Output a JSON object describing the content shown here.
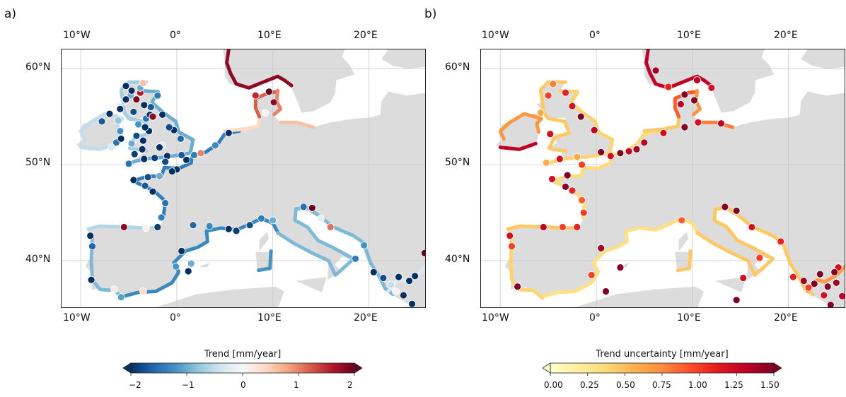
{
  "panels": [
    {
      "letter": "a)",
      "lon_ticks": [
        "10°W",
        "0°",
        "10°E",
        "20°E"
      ],
      "lat_ticks": [
        "60°N",
        "50°N",
        "40°N"
      ],
      "colorbar": {
        "title": "Trend [mm/year]",
        "ticks": [
          "−2",
          "−1",
          "0",
          "1",
          "2"
        ],
        "range": [
          -2,
          2
        ],
        "colormap": "RdBu_r",
        "colors": [
          "#053061",
          "#2166ac",
          "#4393c3",
          "#92c5de",
          "#d1e5f0",
          "#f7f7f7",
          "#fddbc7",
          "#f4a582",
          "#d6604d",
          "#b2182b",
          "#67001f"
        ]
      }
    },
    {
      "letter": "b)",
      "lon_ticks": [
        "10°W",
        "0°",
        "10°E",
        "20°E"
      ],
      "lat_ticks": [
        "60°N",
        "50°N",
        "40°N"
      ],
      "colorbar": {
        "title": "Trend uncertainty [mm/year]",
        "ticks": [
          "0.00",
          "0.25",
          "0.50",
          "0.75",
          "1.00",
          "1.25",
          "1.50"
        ],
        "range": [
          0,
          1.5
        ],
        "colormap": "YlOrRd",
        "colors": [
          "#ffffcc",
          "#ffeda0",
          "#fed976",
          "#feb24c",
          "#fd8d3c",
          "#fc4e2a",
          "#e31a1c",
          "#bd0026",
          "#800026"
        ]
      }
    }
  ],
  "map_extent": {
    "lon": [
      -12,
      26
    ],
    "lat": [
      35,
      62
    ]
  },
  "land_color": "#dcdcdc",
  "grid_color": "#c8c8c8"
}
